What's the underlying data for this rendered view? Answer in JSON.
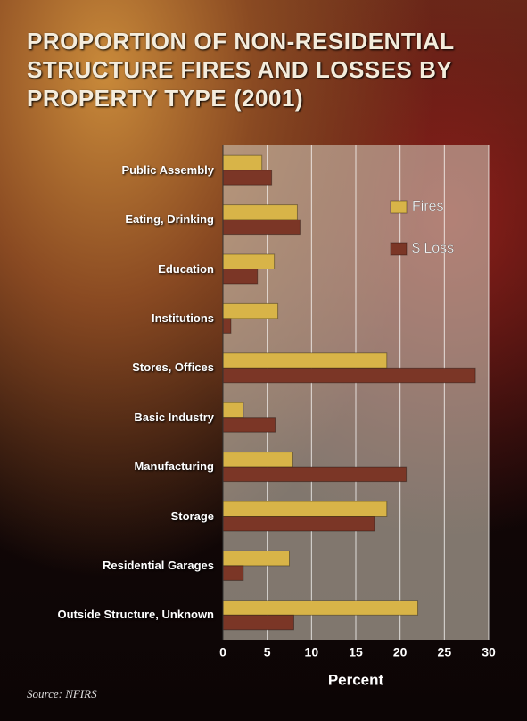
{
  "chart_data": {
    "type": "bar",
    "orientation": "horizontal",
    "title": "PROPORTION OF NON-RESIDENTIAL STRUCTURE FIRES AND LOSSES BY PROPERTY TYPE (2001)",
    "x_label": "Percent",
    "source": "Source: NFIRS",
    "categories": [
      "Public Assembly",
      "Eating, Drinking",
      "Education",
      "Institutions",
      "Stores, Offices",
      "Basic Industry",
      "Manufacturing",
      "Storage",
      "Residential Garages",
      "Outside Structure, Unknown"
    ],
    "series": [
      {
        "name": "Fires",
        "color": "#d8b448",
        "values": [
          4.4,
          8.4,
          5.8,
          6.2,
          18.5,
          2.3,
          7.9,
          18.5,
          7.5,
          22
        ]
      },
      {
        "name": "$ Loss",
        "color": "#7b3626",
        "values": [
          5.5,
          8.7,
          3.9,
          0.9,
          28.5,
          5.9,
          20.7,
          17.1,
          2.3,
          8.0
        ]
      }
    ],
    "xlim": [
      0,
      30
    ],
    "xticks": [
      0,
      5,
      10,
      15,
      20,
      25,
      30
    ],
    "grid": true,
    "legend_position": "upper right"
  }
}
